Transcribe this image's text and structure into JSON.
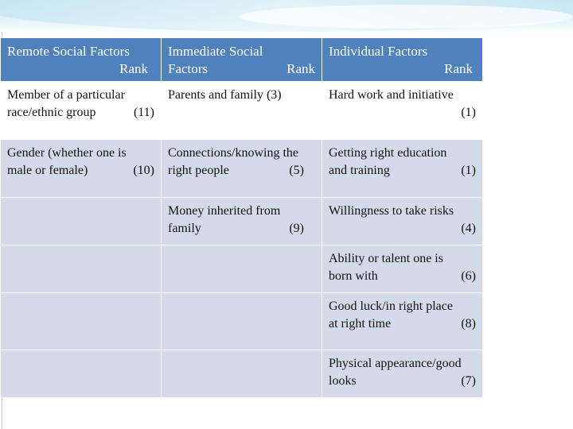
{
  "headers": [
    {
      "line1": "Remote Social Factors",
      "rank": "Rank",
      "line2_prefix": ""
    },
    {
      "line1": "Immediate Social",
      "rank": "Rank",
      "line2_prefix": "Factors"
    },
    {
      "line1": "Individual  Factors",
      "rank": "Rank",
      "line2_prefix": ""
    }
  ],
  "rows": [
    {
      "remote": {
        "text_a": "Member of a particular",
        "text_b": "race/ethnic group",
        "rank": "(11)"
      },
      "immediate": {
        "text_a": "Parents and family (3)",
        "text_b": "",
        "rank": ""
      },
      "individual": {
        "text_a": "Hard work and initiative",
        "text_b": "",
        "rank": "(1)"
      }
    },
    {
      "remote": {
        "text_a": "Gender (whether one is",
        "text_b": "male or female)",
        "rank": "(10)"
      },
      "immediate": {
        "text_a": "Connections/knowing the",
        "text_b": "right people",
        "rank": "(5)"
      },
      "individual": {
        "text_a": "Getting right education",
        "text_b": "and training",
        "rank": "(1)"
      }
    },
    {
      "remote": {
        "text_a": "",
        "text_b": "",
        "rank": ""
      },
      "immediate": {
        "text_a": "Money inherited from",
        "text_b": "family",
        "rank": "(9)"
      },
      "individual": {
        "text_a": "Willingness to take risks",
        "text_b": "",
        "rank": "(4)"
      }
    },
    {
      "remote": {
        "text_a": "",
        "text_b": "",
        "rank": ""
      },
      "immediate": {
        "text_a": "",
        "text_b": "",
        "rank": ""
      },
      "individual": {
        "text_a": "Ability or talent one is",
        "text_b": "born with",
        "rank": "(6)"
      }
    },
    {
      "remote": {
        "text_a": "",
        "text_b": "",
        "rank": ""
      },
      "immediate": {
        "text_a": "",
        "text_b": "",
        "rank": ""
      },
      "individual": {
        "text_a": "Good luck/in right place",
        "text_b": "at right time",
        "rank": "(8)"
      }
    },
    {
      "remote": {
        "text_a": "",
        "text_b": "",
        "rank": ""
      },
      "immediate": {
        "text_a": "",
        "text_b": "",
        "rank": ""
      },
      "individual": {
        "text_a": "Physical appearance/good",
        "text_b": "looks",
        "rank": "(7)"
      }
    }
  ],
  "colors": {
    "header_bg": "#4f81bd",
    "row_bg": "#d3dbea",
    "first_row_bg": "#ffffff"
  }
}
